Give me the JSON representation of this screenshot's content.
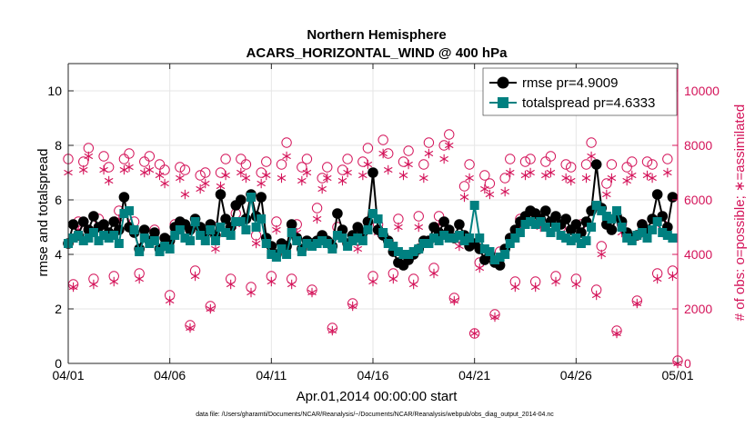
{
  "colors": {
    "rmse": "#000000",
    "totalspread": "#008080",
    "obs": "#d4145a",
    "grid": "#e6e6e6",
    "axis": "#262626"
  },
  "chart_data": {
    "type": "line",
    "title_line1": "Northern Hemisphere",
    "title_line2": "ACARS_HORIZONTAL_WIND @ 400 hPa",
    "xlabel": "Apr.01,2014 00:00:00 start",
    "ylabel_left": "rmse and totalspread",
    "ylabel_right": "# of obs: o=possible; ∗=assimilated",
    "xlim": [
      0,
      30
    ],
    "ylim_left": [
      0,
      11
    ],
    "ylim_right": [
      0,
      11000
    ],
    "x_ticks": [
      0,
      5,
      10,
      15,
      20,
      25,
      30
    ],
    "x_tick_labels": [
      "04/01",
      "04/06",
      "04/11",
      "04/16",
      "04/21",
      "04/26",
      "05/01"
    ],
    "y_ticks_left": [
      0,
      2,
      4,
      6,
      8,
      10
    ],
    "y_ticks_right": [
      0,
      2000,
      4000,
      6000,
      8000,
      10000
    ],
    "legend": [
      {
        "series": "rmse",
        "label": "rmse pr=4.9009"
      },
      {
        "series": "totalspread",
        "label": "totalspread pr=4.6333"
      }
    ],
    "legend_location": "top-right",
    "footnote": "data file: /Users/gharamti/Documents/NCAR/Reanalysis/~/Documents/NCAR/Reanalysis/webpub/obs_diag_output_2014-04.nc",
    "series": [
      {
        "name": "rmse",
        "x": [
          0.0,
          0.25,
          0.5,
          0.75,
          1.0,
          1.25,
          1.5,
          1.75,
          2.0,
          2.25,
          2.5,
          2.75,
          3.0,
          3.25,
          3.5,
          3.75,
          4.0,
          4.25,
          4.5,
          4.75,
          5.0,
          5.25,
          5.5,
          5.75,
          6.0,
          6.25,
          6.5,
          6.75,
          7.0,
          7.25,
          7.5,
          7.75,
          8.0,
          8.25,
          8.5,
          8.75,
          9.0,
          9.25,
          9.5,
          9.75,
          10.0,
          10.25,
          10.5,
          10.75,
          11.0,
          11.25,
          11.5,
          11.75,
          12.0,
          12.25,
          12.5,
          12.75,
          13.0,
          13.25,
          13.5,
          13.75,
          14.0,
          14.25,
          14.5,
          14.75,
          15.0,
          15.25,
          15.5,
          15.75,
          16.0,
          16.25,
          16.5,
          16.75,
          17.0,
          17.25,
          17.5,
          17.75,
          18.0,
          18.25,
          18.5,
          18.75,
          19.0,
          19.25,
          19.5,
          19.75,
          20.0,
          20.25,
          20.5,
          20.75,
          21.0,
          21.25,
          21.5,
          21.75,
          22.0,
          22.25,
          22.5,
          22.75,
          23.0,
          23.25,
          23.5,
          23.75,
          24.0,
          24.25,
          24.5,
          24.75,
          25.0,
          25.25,
          25.5,
          25.75,
          26.0,
          26.25,
          26.5,
          26.75,
          27.0,
          27.25,
          27.5,
          27.75,
          28.0,
          28.25,
          28.5,
          28.75,
          29.0,
          29.25,
          29.5,
          29.75
        ],
        "values": [
          4.4,
          5.1,
          4.7,
          5.2,
          4.9,
          5.4,
          5.0,
          5.1,
          4.8,
          5.2,
          4.9,
          6.1,
          5.0,
          4.8,
          4.2,
          4.9,
          4.5,
          4.8,
          4.2,
          4.6,
          4.5,
          5.0,
          5.2,
          5.1,
          4.9,
          5.3,
          5.0,
          4.8,
          5.1,
          4.7,
          6.2,
          5.3,
          5.0,
          5.8,
          6.0,
          5.3,
          6.2,
          5.4,
          6.1,
          4.6,
          4.3,
          4.0,
          4.4,
          4.3,
          5.1,
          4.6,
          4.2,
          4.5,
          4.4,
          4.5,
          4.7,
          4.5,
          4.3,
          5.5,
          4.9,
          4.4,
          4.7,
          5.0,
          4.8,
          5.2,
          7.0,
          4.9,
          4.7,
          4.5,
          4.1,
          3.7,
          3.6,
          3.8,
          4.0,
          4.2,
          4.5,
          4.5,
          5.0,
          4.8,
          5.2,
          4.9,
          4.6,
          5.1,
          4.7,
          4.3,
          4.4,
          4.2,
          3.8,
          4.0,
          3.7,
          3.6,
          4.2,
          4.6,
          4.9,
          5.2,
          5.4,
          5.6,
          5.5,
          5.3,
          5.6,
          5.2,
          5.4,
          5.1,
          5.3,
          4.9,
          5.1,
          4.8,
          5.2,
          5.6,
          7.3,
          5.7,
          5.1,
          4.9,
          5.4,
          5.2,
          4.8,
          4.6,
          4.7,
          5.1,
          4.9,
          5.3,
          6.2,
          5.4,
          5.0,
          6.1
        ]
      },
      {
        "name": "totalspread",
        "x": [
          0.0,
          0.25,
          0.5,
          0.75,
          1.0,
          1.25,
          1.5,
          1.75,
          2.0,
          2.25,
          2.5,
          2.75,
          3.0,
          3.25,
          3.5,
          3.75,
          4.0,
          4.25,
          4.5,
          4.75,
          5.0,
          5.25,
          5.5,
          5.75,
          6.0,
          6.25,
          6.5,
          6.75,
          7.0,
          7.25,
          7.5,
          7.75,
          8.0,
          8.25,
          8.5,
          8.75,
          9.0,
          9.25,
          9.5,
          9.75,
          10.0,
          10.25,
          10.5,
          10.75,
          11.0,
          11.25,
          11.5,
          11.75,
          12.0,
          12.25,
          12.5,
          12.75,
          13.0,
          13.25,
          13.5,
          13.75,
          14.0,
          14.25,
          14.5,
          14.75,
          15.0,
          15.25,
          15.5,
          15.75,
          16.0,
          16.25,
          16.5,
          16.75,
          17.0,
          17.25,
          17.5,
          17.75,
          18.0,
          18.25,
          18.5,
          18.75,
          19.0,
          19.25,
          19.5,
          19.75,
          20.0,
          20.25,
          20.5,
          20.75,
          21.0,
          21.25,
          21.5,
          21.75,
          22.0,
          22.25,
          22.5,
          22.75,
          23.0,
          23.25,
          23.5,
          23.75,
          24.0,
          24.25,
          24.5,
          24.75,
          25.0,
          25.25,
          25.5,
          25.75,
          26.0,
          26.25,
          26.5,
          26.75,
          27.0,
          27.25,
          27.5,
          27.75,
          28.0,
          28.25,
          28.5,
          28.75,
          29.0,
          29.25,
          29.5,
          29.75
        ],
        "values": [
          4.4,
          4.6,
          4.7,
          4.5,
          4.6,
          4.8,
          4.5,
          4.7,
          4.6,
          4.7,
          4.4,
          5.5,
          5.6,
          4.9,
          4.1,
          4.6,
          4.4,
          4.5,
          4.1,
          4.3,
          4.2,
          4.7,
          4.9,
          4.6,
          4.5,
          5.2,
          4.7,
          4.5,
          4.9,
          4.5,
          5.0,
          4.8,
          4.7,
          5.2,
          5.2,
          4.9,
          6.1,
          5.0,
          5.3,
          4.4,
          4.0,
          3.9,
          4.2,
          4.0,
          4.8,
          4.5,
          4.1,
          4.4,
          4.3,
          4.4,
          4.5,
          4.4,
          4.2,
          4.7,
          4.6,
          4.3,
          4.5,
          4.6,
          4.5,
          4.9,
          5.5,
          5.3,
          4.8,
          4.4,
          4.3,
          4.1,
          4.0,
          4.0,
          4.1,
          4.2,
          4.4,
          4.4,
          4.6,
          4.5,
          4.7,
          4.6,
          4.6,
          4.7,
          4.5,
          4.6,
          5.8,
          4.6,
          4.2,
          4.1,
          3.8,
          3.9,
          4.0,
          4.4,
          4.6,
          4.8,
          5.1,
          5.2,
          5.1,
          5.2,
          5.0,
          4.8,
          5.0,
          4.7,
          4.6,
          4.5,
          4.6,
          4.4,
          4.5,
          5.0,
          5.8,
          5.6,
          5.4,
          5.3,
          5.6,
          5.0,
          4.6,
          4.5,
          4.7,
          4.8,
          4.6,
          4.9,
          5.2,
          4.8,
          4.7,
          4.6
        ]
      },
      {
        "name": "obs_possible",
        "x": [
          0.0,
          0.25,
          0.5,
          0.75,
          1.0,
          1.25,
          1.5,
          1.75,
          2.0,
          2.25,
          2.5,
          2.75,
          3.0,
          3.25,
          3.5,
          3.75,
          4.0,
          4.25,
          4.5,
          4.75,
          5.0,
          5.25,
          5.5,
          5.75,
          6.0,
          6.25,
          6.5,
          6.75,
          7.0,
          7.25,
          7.5,
          7.75,
          8.0,
          8.25,
          8.5,
          8.75,
          9.0,
          9.25,
          9.5,
          9.75,
          10.0,
          10.25,
          10.5,
          10.75,
          11.0,
          11.25,
          11.5,
          11.75,
          12.0,
          12.25,
          12.5,
          12.75,
          13.0,
          13.25,
          13.5,
          13.75,
          14.0,
          14.25,
          14.5,
          14.75,
          15.0,
          15.25,
          15.5,
          15.75,
          16.0,
          16.25,
          16.5,
          16.75,
          17.0,
          17.25,
          17.5,
          17.75,
          18.0,
          18.25,
          18.5,
          18.75,
          19.0,
          19.25,
          19.5,
          19.75,
          20.0,
          20.25,
          20.5,
          20.75,
          21.0,
          21.25,
          21.5,
          21.75,
          22.0,
          22.25,
          22.5,
          22.75,
          23.0,
          23.25,
          23.5,
          23.75,
          24.0,
          24.25,
          24.5,
          24.75,
          25.0,
          25.25,
          25.5,
          25.75,
          26.0,
          26.25,
          26.5,
          26.75,
          27.0,
          27.25,
          27.5,
          27.75,
          28.0,
          28.25,
          28.5,
          28.75,
          29.0,
          29.25,
          29.5,
          29.75,
          30.0
        ],
        "values": [
          7500,
          2900,
          5200,
          7400,
          7900,
          3100,
          5300,
          7600,
          7200,
          3200,
          5600,
          7500,
          7700,
          5200,
          3300,
          7400,
          7600,
          4900,
          7300,
          7100,
          2500,
          5100,
          7200,
          7100,
          1400,
          3400,
          6900,
          7000,
          2100,
          5000,
          7000,
          7500,
          3100,
          5500,
          7500,
          7300,
          2800,
          4700,
          7000,
          7400,
          3200,
          5200,
          7300,
          8100,
          3100,
          5100,
          7200,
          7500,
          2700,
          5700,
          6800,
          7200,
          1300,
          5000,
          7100,
          7500,
          2200,
          4500,
          7400,
          7900,
          3200,
          5100,
          8200,
          7700,
          3300,
          5300,
          7400,
          7800,
          3100,
          5400,
          7300,
          8100,
          3500,
          5400,
          8000,
          8400,
          2400,
          4600,
          6500,
          7300,
          1100,
          3700,
          6900,
          6600,
          1800,
          4100,
          6800,
          7500,
          3000,
          5300,
          7400,
          7500,
          3000,
          5300,
          7400,
          7600,
          3200,
          5000,
          7300,
          7200,
          3100,
          5100,
          7300,
          8100,
          2700,
          4300,
          6600,
          7300,
          1200,
          5100,
          7200,
          7400,
          2300,
          5100,
          7400,
          7300,
          3300,
          5100,
          7500,
          3400,
          100
        ]
      },
      {
        "name": "obs_assimilated",
        "x": [
          0.0,
          0.25,
          0.5,
          0.75,
          1.0,
          1.25,
          1.5,
          1.75,
          2.0,
          2.25,
          2.5,
          2.75,
          3.0,
          3.25,
          3.5,
          3.75,
          4.0,
          4.25,
          4.5,
          4.75,
          5.0,
          5.25,
          5.5,
          5.75,
          6.0,
          6.25,
          6.5,
          6.75,
          7.0,
          7.25,
          7.5,
          7.75,
          8.0,
          8.25,
          8.5,
          8.75,
          9.0,
          9.25,
          9.5,
          9.75,
          10.0,
          10.25,
          10.5,
          10.75,
          11.0,
          11.25,
          11.5,
          11.75,
          12.0,
          12.25,
          12.5,
          12.75,
          13.0,
          13.25,
          13.5,
          13.75,
          14.0,
          14.25,
          14.5,
          14.75,
          15.0,
          15.25,
          15.5,
          15.75,
          16.0,
          16.25,
          16.5,
          16.75,
          17.0,
          17.25,
          17.5,
          17.75,
          18.0,
          18.25,
          18.5,
          18.75,
          19.0,
          19.25,
          19.5,
          19.75,
          20.0,
          20.25,
          20.5,
          20.75,
          21.0,
          21.25,
          21.5,
          21.75,
          22.0,
          22.25,
          22.5,
          22.75,
          23.0,
          23.25,
          23.5,
          23.75,
          24.0,
          24.25,
          24.5,
          24.75,
          25.0,
          25.25,
          25.5,
          25.75,
          26.0,
          26.25,
          26.5,
          26.75,
          27.0,
          27.25,
          27.5,
          27.75,
          28.0,
          28.25,
          28.5,
          28.75,
          29.0,
          29.25,
          29.5,
          29.75,
          30.0
        ],
        "values": [
          7000,
          2800,
          4900,
          7100,
          7600,
          2900,
          5000,
          7100,
          6700,
          3000,
          5300,
          7100,
          7200,
          4900,
          3100,
          7000,
          7100,
          4600,
          6900,
          6600,
          2300,
          4800,
          6800,
          6200,
          1300,
          3200,
          6400,
          6600,
          2000,
          4200,
          6500,
          6900,
          2900,
          5100,
          7000,
          6800,
          2600,
          4400,
          6600,
          6900,
          3000,
          4900,
          6800,
          7600,
          2900,
          4800,
          6700,
          7000,
          2600,
          5300,
          6400,
          6800,
          1200,
          4700,
          6700,
          7000,
          2100,
          4200,
          6900,
          7300,
          3000,
          4800,
          7700,
          7100,
          3100,
          5000,
          6900,
          7300,
          2900,
          5000,
          6800,
          7700,
          3300,
          5100,
          7500,
          8000,
          2300,
          4300,
          6100,
          6800,
          1100,
          3500,
          6400,
          6200,
          1700,
          3900,
          6300,
          7000,
          2800,
          5000,
          6900,
          7000,
          2800,
          5000,
          6900,
          7000,
          3000,
          4700,
          6800,
          6700,
          2900,
          4800,
          6800,
          7600,
          2500,
          4000,
          6200,
          6800,
          1100,
          4800,
          6700,
          6900,
          2200,
          4800,
          6900,
          6800,
          3100,
          4800,
          7000,
          3200,
          0
        ]
      }
    ]
  }
}
